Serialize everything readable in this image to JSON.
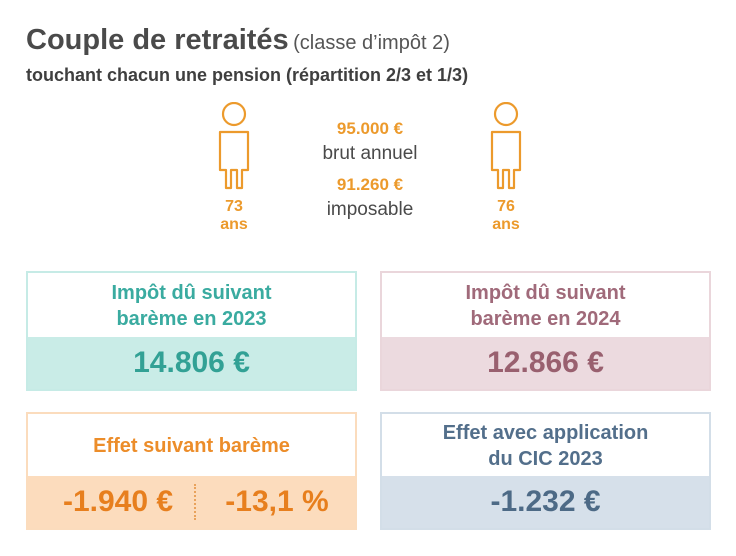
{
  "header": {
    "title": "Couple de retraités",
    "title_note": "(classe d’impôt 2)",
    "subtitle": "touchant chacun une pension (répartition 2/3 et 1/3)"
  },
  "persons": [
    {
      "age": "73",
      "unit": "ans",
      "icon": "person-icon"
    },
    {
      "age": "76",
      "unit": "ans",
      "icon": "person-icon"
    }
  ],
  "income": {
    "gross_amount": "95.000 €",
    "gross_label": "brut annuel",
    "taxable_amount": "91.260 €",
    "taxable_label": "imposable"
  },
  "tax_2023": {
    "label_line1": "Impôt dû suivant",
    "label_line2": "barème en 2023",
    "value": "14.806 €"
  },
  "tax_2024": {
    "label_line1": "Impôt dû suivant",
    "label_line2": "barème en 2024",
    "value": "12.866 €"
  },
  "effect_scale": {
    "label": "Effet suivant barème",
    "value_amount": "-1.940 €",
    "value_percent": "-13,1 %"
  },
  "effect_cic": {
    "label_line1": "Effet avec application",
    "label_line2": "du CIC 2023",
    "value": "-1.232 €"
  },
  "colors": {
    "orange": "#ec9a2c",
    "teal": "#3aaba0",
    "mauve": "#a06a7a",
    "slate": "#536f8b"
  }
}
